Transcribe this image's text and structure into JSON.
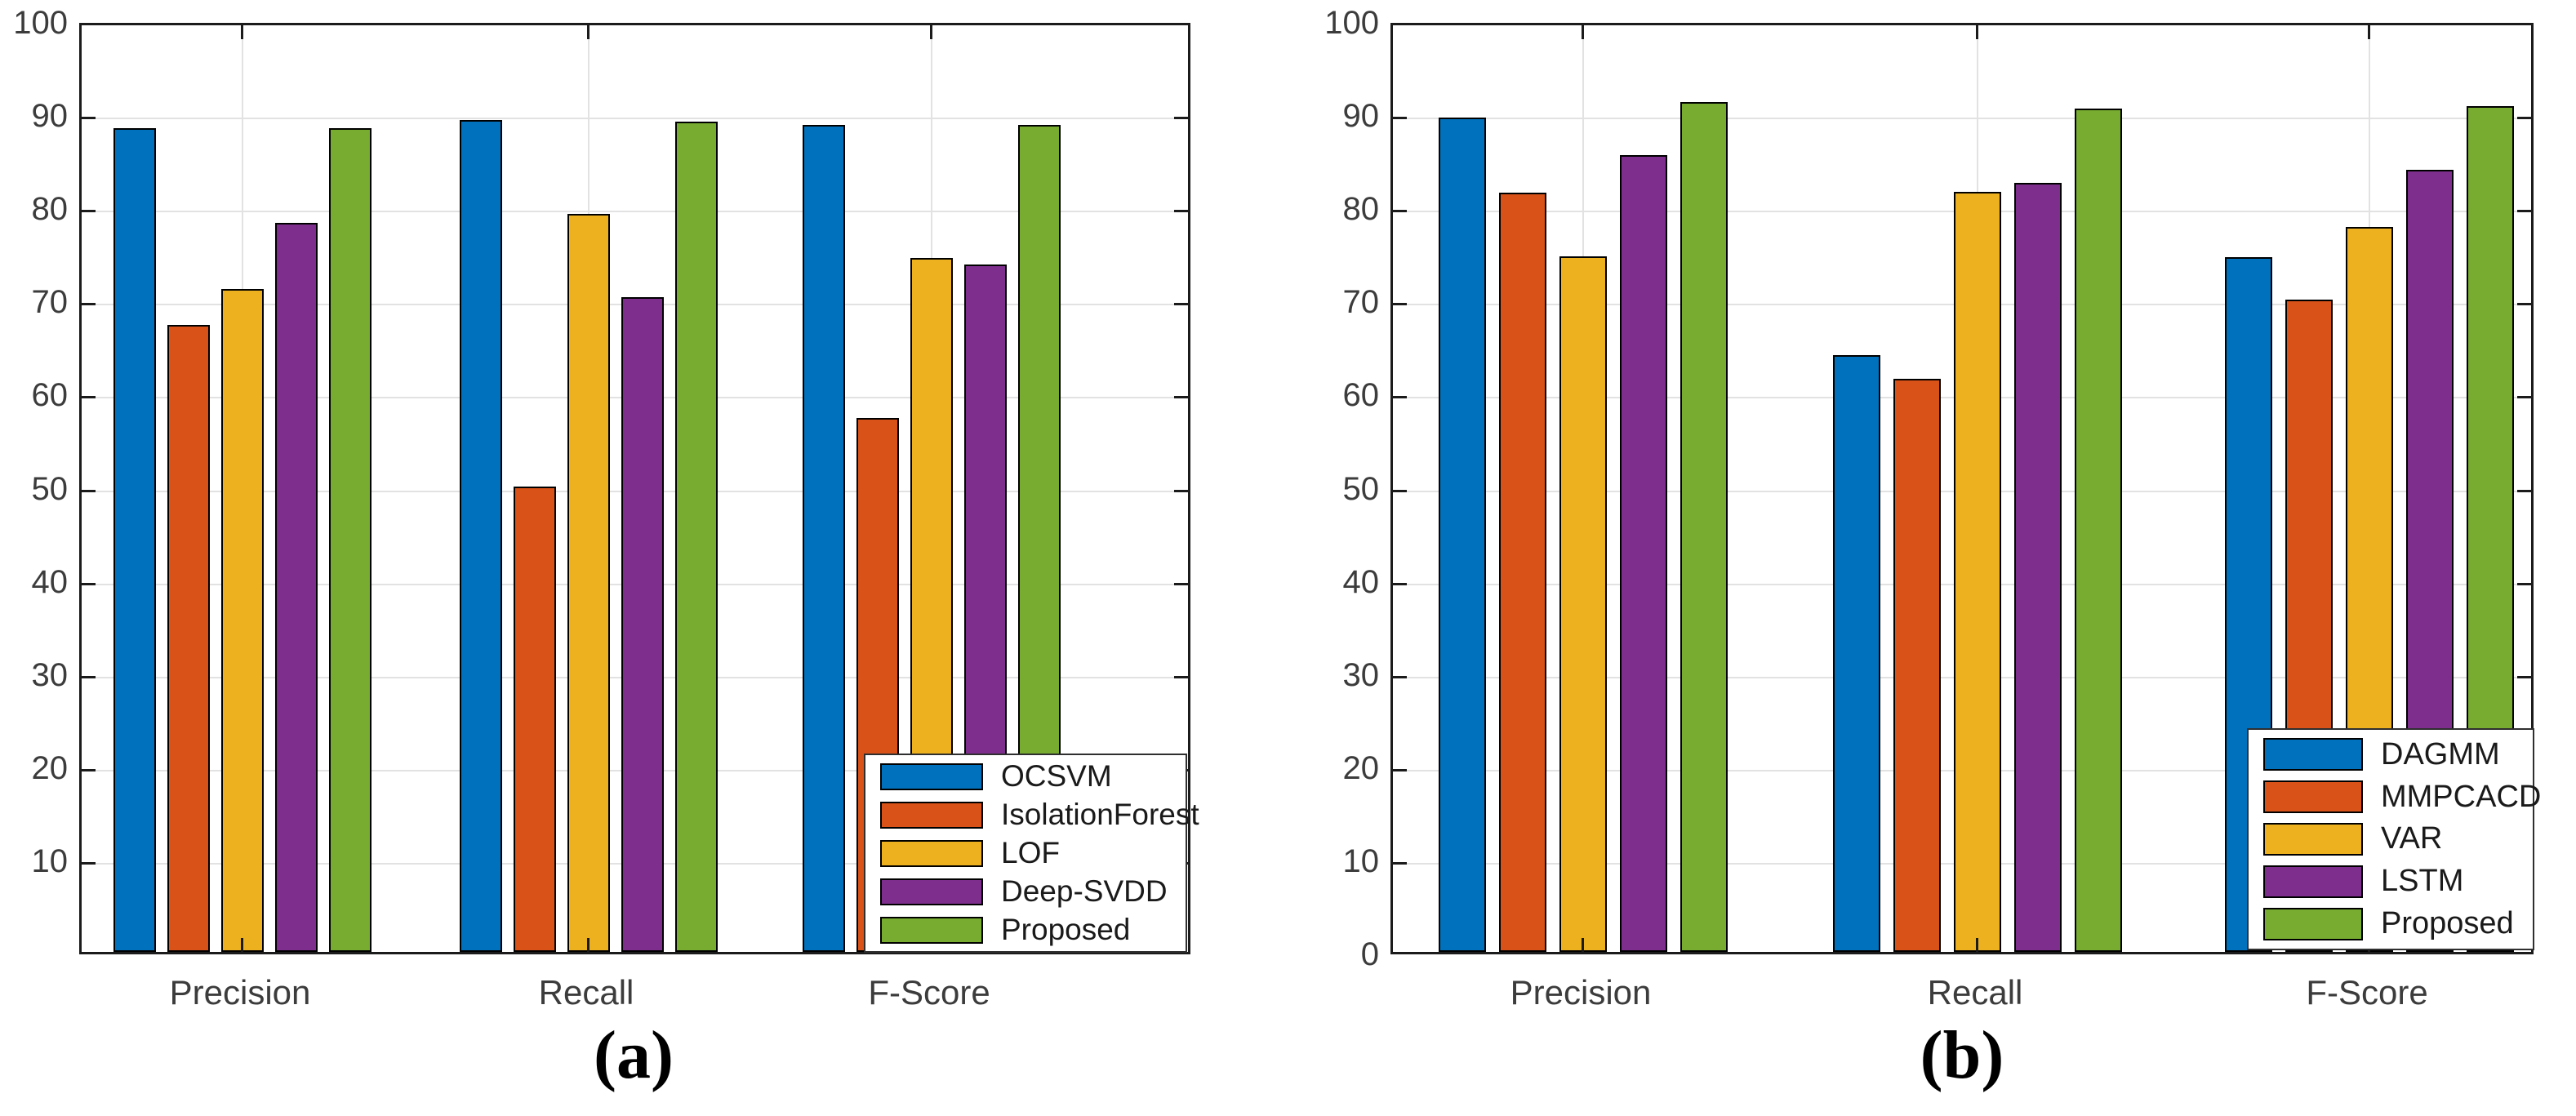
{
  "figure": {
    "background": "#ffffff",
    "text_color": "#3c3c3c",
    "axis_color": "#1b1b1b",
    "grid_color": "#e2e2e2"
  },
  "chart_data": [
    {
      "id": "a",
      "type": "bar",
      "title": "",
      "caption": "(a)",
      "categories": [
        "Precision",
        "Recall",
        "F-Score"
      ],
      "series": [
        {
          "name": "OCSVM",
          "color": "#0072BD",
          "values": [
            88.4,
            89.3,
            88.8
          ]
        },
        {
          "name": "IsolationForest",
          "color": "#D95319",
          "values": [
            67.3,
            50.0,
            57.3
          ]
        },
        {
          "name": "LOF",
          "color": "#EDB120",
          "values": [
            71.2,
            79.2,
            74.5
          ]
        },
        {
          "name": "Deep-SVDD",
          "color": "#7E2F8E",
          "values": [
            78.3,
            70.3,
            73.8
          ]
        },
        {
          "name": "Proposed",
          "color": "#77AC30",
          "values": [
            88.4,
            89.1,
            88.8
          ]
        }
      ],
      "xlabel": "",
      "ylabel": "",
      "ylim": [
        0,
        100
      ],
      "yticks": [
        10,
        20,
        30,
        40,
        50,
        60,
        70,
        80,
        90,
        100
      ],
      "grid": true,
      "legend_position": "bottom-right-inside"
    },
    {
      "id": "b",
      "type": "bar",
      "title": "",
      "caption": "(b)",
      "categories": [
        "Precision",
        "Recall",
        "F-Score"
      ],
      "series": [
        {
          "name": "DAGMM",
          "color": "#0072BD",
          "values": [
            89.6,
            64.1,
            74.6
          ]
        },
        {
          "name": "MMPCACD",
          "color": "#D95319",
          "values": [
            81.5,
            61.5,
            70.0
          ]
        },
        {
          "name": "VAR",
          "color": "#EDB120",
          "values": [
            74.7,
            81.6,
            77.8
          ]
        },
        {
          "name": "LSTM",
          "color": "#7E2F8E",
          "values": [
            85.5,
            82.6,
            84.0
          ]
        },
        {
          "name": "Proposed",
          "color": "#77AC30",
          "values": [
            91.2,
            90.5,
            90.8
          ]
        }
      ],
      "xlabel": "",
      "ylabel": "",
      "ylim": [
        0,
        100
      ],
      "yticks": [
        0,
        10,
        20,
        30,
        40,
        50,
        60,
        70,
        80,
        90,
        100
      ],
      "grid": true,
      "legend_position": "bottom-right-inside"
    }
  ]
}
